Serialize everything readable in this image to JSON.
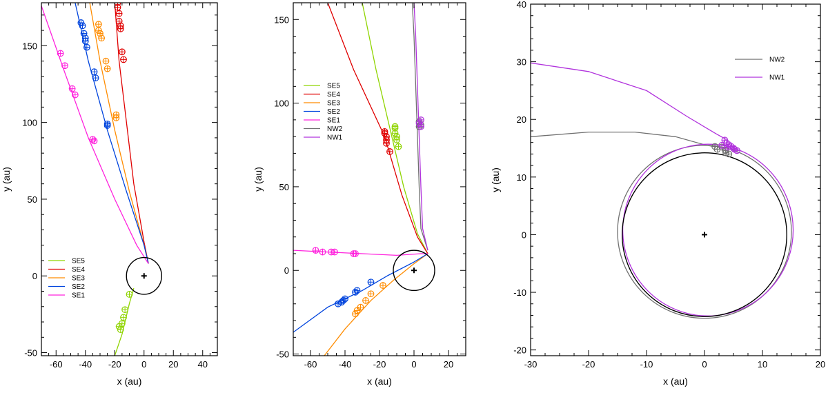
{
  "chart_data": [
    {
      "type": "line",
      "id": "left",
      "xlabel": "x (au)",
      "ylabel": "y (au)",
      "xlim": [
        -70,
        50
      ],
      "ylim": [
        -52,
        178
      ],
      "xticks": [
        -60,
        -40,
        -20,
        0,
        20,
        40
      ],
      "yticks": [
        -50,
        0,
        50,
        100,
        150
      ],
      "xtick_labels": [
        "-60",
        "-40",
        "-20",
        "0",
        "20",
        "40"
      ],
      "ytick_labels": [
        "-50",
        "0",
        "50",
        "100",
        "150"
      ],
      "star": {
        "x": 0,
        "y": 0,
        "marker": "+"
      },
      "disk": {
        "cx": 0,
        "cy": 0,
        "r": 12
      },
      "legend": {
        "position": "lower-left",
        "entries": [
          {
            "label": "SE5",
            "color": "#8fd400"
          },
          {
            "label": "SE4",
            "color": "#e00000"
          },
          {
            "label": "SE3",
            "color": "#ff8c00"
          },
          {
            "label": "SE2",
            "color": "#0044dd"
          },
          {
            "label": "SE1",
            "color": "#ff22dd"
          }
        ]
      },
      "series": [
        {
          "name": "SE5",
          "color": "#8fd400",
          "line": [
            [
              -20,
              -52
            ],
            [
              -15,
              -38
            ],
            [
              -10,
              -18
            ],
            [
              -7,
              -8
            ]
          ],
          "points": [
            [
              -10,
              -12
            ],
            [
              -13,
              -22
            ],
            [
              -14,
              -27
            ],
            [
              -15,
              -31
            ],
            [
              -16,
              -35
            ],
            [
              -17,
              -33
            ]
          ]
        },
        {
          "name": "SE4",
          "color": "#e00000",
          "line": [
            [
              -20,
              178
            ],
            [
              -17,
              140
            ],
            [
              -12,
              100
            ],
            [
              -7,
              60
            ],
            [
              0,
              22
            ],
            [
              3,
              8
            ]
          ],
          "points": [
            [
              -18,
              178
            ],
            [
              -18,
              175
            ],
            [
              -17,
              171
            ],
            [
              -17,
              166
            ],
            [
              -16,
              163
            ],
            [
              -16,
              161
            ],
            [
              -15,
              146
            ],
            [
              -14,
              141
            ]
          ]
        },
        {
          "name": "SE3",
          "color": "#ff8c00",
          "line": [
            [
              -37,
              178
            ],
            [
              -30,
              140
            ],
            [
              -20,
              95
            ],
            [
              -10,
              55
            ],
            [
              0,
              20
            ],
            [
              3,
              8
            ]
          ],
          "points": [
            [
              -31,
              164
            ],
            [
              -31,
              160
            ],
            [
              -30,
              158
            ],
            [
              -29,
              155
            ],
            [
              -26,
              140
            ],
            [
              -25,
              135
            ],
            [
              -19,
              105
            ],
            [
              -19,
              103
            ]
          ]
        },
        {
          "name": "SE2",
          "color": "#0044dd",
          "line": [
            [
              -47,
              178
            ],
            [
              -38,
              140
            ],
            [
              -25,
              95
            ],
            [
              -12,
              55
            ],
            [
              0,
              20
            ],
            [
              3,
              8
            ]
          ],
          "points": [
            [
              -43,
              165
            ],
            [
              -42,
              163
            ],
            [
              -41,
              158
            ],
            [
              -40,
              155
            ],
            [
              -40,
              153
            ],
            [
              -39,
              149
            ],
            [
              -34,
              133
            ],
            [
              -33,
              129
            ],
            [
              -25,
              99
            ],
            [
              -25,
              98
            ]
          ]
        },
        {
          "name": "SE1",
          "color": "#ff22dd",
          "line": [
            [
              -70,
              176
            ],
            [
              -55,
              135
            ],
            [
              -38,
              90
            ],
            [
              -20,
              50
            ],
            [
              -5,
              20
            ],
            [
              3,
              8
            ]
          ],
          "points": [
            [
              -57,
              145
            ],
            [
              -54,
              137
            ],
            [
              -49,
              122
            ],
            [
              -47,
              118
            ],
            [
              -35,
              89
            ],
            [
              -34,
              88
            ]
          ]
        }
      ]
    },
    {
      "type": "line",
      "id": "middle",
      "xlabel": "x (au)",
      "ylabel": "y (au)",
      "xlim": [
        -70,
        30
      ],
      "ylim": [
        -51,
        160
      ],
      "xticks": [
        -60,
        -40,
        -20,
        0,
        20
      ],
      "yticks": [
        -50,
        0,
        50,
        100,
        150
      ],
      "xtick_labels": [
        "-60",
        "-40",
        "-20",
        "0",
        "20"
      ],
      "ytick_labels": [
        "-50",
        "0",
        "50",
        "100",
        "150"
      ],
      "star": {
        "x": 0,
        "y": 0,
        "marker": "+"
      },
      "disk": {
        "cx": 0,
        "cy": 0,
        "r": 12
      },
      "legend": {
        "position": "upper-left",
        "entries": [
          {
            "label": "SE5",
            "color": "#8fd400"
          },
          {
            "label": "SE4",
            "color": "#e00000"
          },
          {
            "label": "SE3",
            "color": "#ff8c00"
          },
          {
            "label": "SE2",
            "color": "#0044dd"
          },
          {
            "label": "SE1",
            "color": "#ff22dd"
          },
          {
            "label": "NW2",
            "color": "#707070"
          },
          {
            "label": "NW1",
            "color": "#b133dd"
          }
        ]
      },
      "series": [
        {
          "name": "SE5",
          "color": "#8fd400",
          "line": [
            [
              -30,
              160
            ],
            [
              -22,
              120
            ],
            [
              -14,
              85
            ],
            [
              -6,
              50
            ],
            [
              2,
              22
            ],
            [
              8,
              10
            ]
          ],
          "points": [
            [
              -11,
              86
            ],
            [
              -11,
              85
            ],
            [
              -11,
              82
            ],
            [
              -10,
              80
            ],
            [
              -10,
              78
            ],
            [
              -9,
              74
            ]
          ]
        },
        {
          "name": "SE4",
          "color": "#e00000",
          "line": [
            [
              -50,
              160
            ],
            [
              -35,
              120
            ],
            [
              -17,
              80
            ],
            [
              -7,
              45
            ],
            [
              2,
              20
            ],
            [
              8,
              10
            ]
          ],
          "points": [
            [
              -17,
              83
            ],
            [
              -17,
              82
            ],
            [
              -16,
              80
            ],
            [
              -16,
              78
            ],
            [
              -16,
              76
            ],
            [
              -14,
              71
            ]
          ]
        },
        {
          "name": "SE3",
          "color": "#ff8c00",
          "line": [
            [
              -52,
              -51
            ],
            [
              -40,
              -35
            ],
            [
              -25,
              -18
            ],
            [
              -12,
              -6
            ],
            [
              0,
              4
            ],
            [
              8,
              10
            ]
          ],
          "points": [
            [
              -34,
              -26
            ],
            [
              -33,
              -24
            ],
            [
              -31,
              -22
            ],
            [
              -28,
              -18
            ],
            [
              -25,
              -14
            ],
            [
              -18,
              -9
            ]
          ]
        },
        {
          "name": "SE2",
          "color": "#0044dd",
          "line": [
            [
              -70,
              -37
            ],
            [
              -50,
              -22
            ],
            [
              -30,
              -12
            ],
            [
              -15,
              -3
            ],
            [
              0,
              5
            ],
            [
              8,
              10
            ]
          ],
          "points": [
            [
              -44,
              -20
            ],
            [
              -42,
              -19
            ],
            [
              -41,
              -18
            ],
            [
              -40,
              -17
            ],
            [
              -34,
              -13
            ],
            [
              -33,
              -12
            ],
            [
              -25,
              -7
            ]
          ]
        },
        {
          "name": "SE1",
          "color": "#ff22dd",
          "line": [
            [
              -70,
              12
            ],
            [
              -50,
              11
            ],
            [
              -30,
              10
            ],
            [
              -10,
              9
            ],
            [
              4,
              10
            ],
            [
              8,
              10
            ]
          ],
          "points": [
            [
              -57,
              12
            ],
            [
              -53,
              11
            ],
            [
              -48,
              11
            ],
            [
              -46,
              11
            ],
            [
              -35,
              10
            ],
            [
              -34,
              10
            ]
          ]
        },
        {
          "name": "NW2",
          "color": "#707070",
          "line": [
            [
              -1,
              160
            ],
            [
              0,
              140
            ],
            [
              1,
              110
            ],
            [
              2,
              80
            ],
            [
              3,
              50
            ],
            [
              4,
              25
            ],
            [
              8,
              12
            ]
          ],
          "points": [
            [
              3,
              89
            ],
            [
              4,
              87
            ],
            [
              3,
              86
            ]
          ]
        },
        {
          "name": "NW1",
          "color": "#b133dd",
          "line": [
            [
              0,
              160
            ],
            [
              1,
              140
            ],
            [
              2,
              110
            ],
            [
              3,
              80
            ],
            [
              4,
              50
            ],
            [
              5,
              25
            ],
            [
              8,
              12
            ]
          ],
          "points": [
            [
              4,
              90
            ],
            [
              3,
              88
            ],
            [
              4,
              86
            ]
          ]
        }
      ]
    },
    {
      "type": "line",
      "id": "right",
      "xlabel": "x (au)",
      "ylabel": "y (au)",
      "xlim": [
        -30,
        20
      ],
      "ylim": [
        -21,
        40
      ],
      "xticks": [
        -30,
        -20,
        -10,
        0,
        10,
        20
      ],
      "yticks": [
        -20,
        -10,
        0,
        10,
        20,
        30,
        40
      ],
      "xtick_labels": [
        "-30",
        "-20",
        "-10",
        "0",
        "10",
        "20"
      ],
      "ytick_labels": [
        "-20",
        "-10",
        "0",
        "10",
        "20",
        "30",
        "40"
      ],
      "star": {
        "x": 0,
        "y": 0,
        "marker": "+"
      },
      "disk": {
        "cx": 0,
        "cy": 0,
        "r": 14.2
      },
      "legend": {
        "position": "top-right",
        "entries": [
          {
            "label": "NW2",
            "color": "#707070"
          },
          {
            "label": "NW1",
            "color": "#b133dd"
          }
        ]
      },
      "series": [
        {
          "name": "NW2",
          "color": "#707070",
          "line": [
            [
              -30,
              17
            ],
            [
              -20,
              17.8
            ],
            [
              -12,
              17.8
            ],
            [
              -5,
              17
            ],
            [
              0,
              15.6
            ],
            [
              2,
              15.2
            ]
          ],
          "ellipse": {
            "cx": 0,
            "cy": 0.5,
            "rx": 15.0,
            "ry": 15.0
          },
          "points": [
            [
              1.8,
              15.3
            ],
            [
              2.2,
              14.8
            ],
            [
              3.0,
              15.2
            ],
            [
              3.6,
              14.6
            ],
            [
              3.7,
              14.2
            ],
            [
              4.2,
              14.0
            ]
          ]
        },
        {
          "name": "NW1",
          "color": "#b133dd",
          "line": [
            [
              -30,
              29.8
            ],
            [
              -20,
              28.3
            ],
            [
              -10,
              25
            ],
            [
              -3,
              20.5
            ],
            [
              2,
              17.5
            ],
            [
              3.8,
              16.5
            ]
          ],
          "ellipse": {
            "cx": 0.6,
            "cy": 0.8,
            "rx": 14.7,
            "ry": 14.9
          },
          "points": [
            [
              3.5,
              16.4
            ],
            [
              3.8,
              15.9
            ],
            [
              4.2,
              15.6
            ],
            [
              4.6,
              15.3
            ],
            [
              5.0,
              15.0
            ],
            [
              5.2,
              14.8
            ],
            [
              5.6,
              14.6
            ],
            [
              3.0,
              15.5
            ],
            [
              4.0,
              15.2
            ]
          ]
        }
      ]
    }
  ]
}
